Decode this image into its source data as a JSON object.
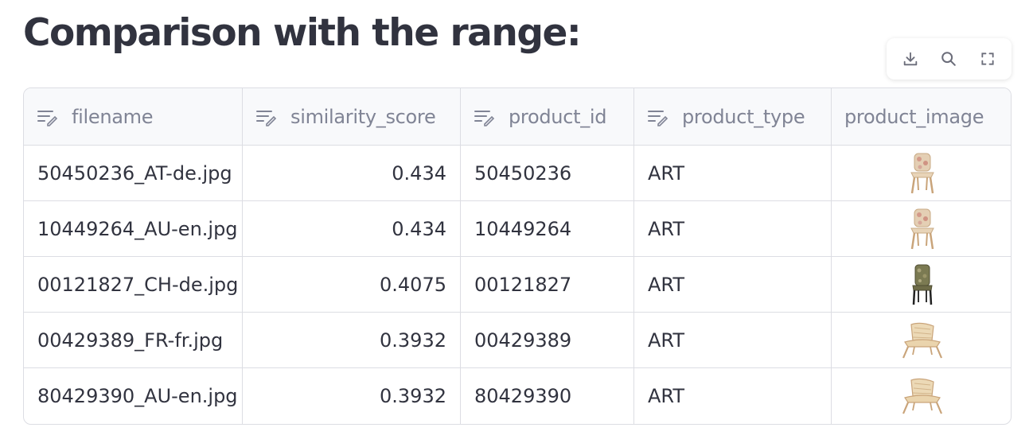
{
  "page": {
    "title": "Comparison with the range:"
  },
  "toolbar": {
    "buttons": [
      {
        "name": "download-button",
        "icon": "download-icon"
      },
      {
        "name": "search-button",
        "icon": "search-icon"
      },
      {
        "name": "fullscreen-button",
        "icon": "fullscreen-icon"
      }
    ]
  },
  "table": {
    "columns": [
      "filename",
      "similarity_score",
      "product_id",
      "product_type",
      "product_image"
    ],
    "rows": [
      {
        "filename": "50450236_AT-de.jpg",
        "similarity_score": "0.434",
        "product_id": "50450236",
        "product_type": "ART",
        "product_image": "wicker-chair-floral"
      },
      {
        "filename": "10449264_AU-en.jpg",
        "similarity_score": "0.434",
        "product_id": "10449264",
        "product_type": "ART",
        "product_image": "wicker-chair-floral"
      },
      {
        "filename": "00121827_CH-de.jpg",
        "similarity_score": "0.4075",
        "product_id": "00121827",
        "product_type": "ART",
        "product_image": "upholstered-chair-dark"
      },
      {
        "filename": "00429389_FR-fr.jpg",
        "similarity_score": "0.3932",
        "product_id": "00429389",
        "product_type": "ART",
        "product_image": "rattan-lounge-chair"
      },
      {
        "filename": "80429390_AU-en.jpg",
        "similarity_score": "0.3932",
        "product_id": "80429390",
        "product_type": "ART",
        "product_image": "rattan-lounge-chair"
      }
    ]
  },
  "colors": {
    "text": "#31333f",
    "header_text": "#808495",
    "header_bg": "#f8f9fb",
    "border": "#dcdde3"
  }
}
